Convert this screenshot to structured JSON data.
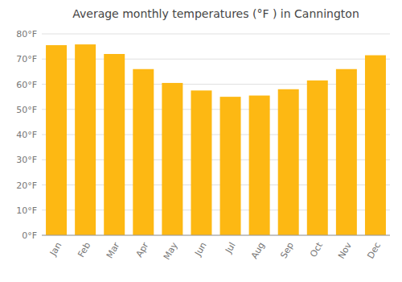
{
  "chart_data": {
    "type": "bar",
    "title": "Average monthly temperatures (°F ) in Cannington",
    "categories": [
      "Jan",
      "Feb",
      "Mar",
      "Apr",
      "May",
      "Jun",
      "Jul",
      "Aug",
      "Sep",
      "Oct",
      "Nov",
      "Dec"
    ],
    "values": [
      75.5,
      75.8,
      72.0,
      66.0,
      60.5,
      57.5,
      55.0,
      55.5,
      58.0,
      61.5,
      66.0,
      71.5
    ],
    "color": "#FDB813",
    "ylim": [
      0,
      80
    ],
    "yticks": [
      {
        "value": 0,
        "label": "0°F"
      },
      {
        "value": 10,
        "label": "10°F"
      },
      {
        "value": 20,
        "label": "20°F"
      },
      {
        "value": 30,
        "label": "30°F"
      },
      {
        "value": 40,
        "label": "40°F"
      },
      {
        "value": 50,
        "label": "50°F"
      },
      {
        "value": 60,
        "label": "60°F"
      },
      {
        "value": 70,
        "label": "70°F"
      },
      {
        "value": 80,
        "label": "80°F"
      }
    ],
    "grid": true
  }
}
